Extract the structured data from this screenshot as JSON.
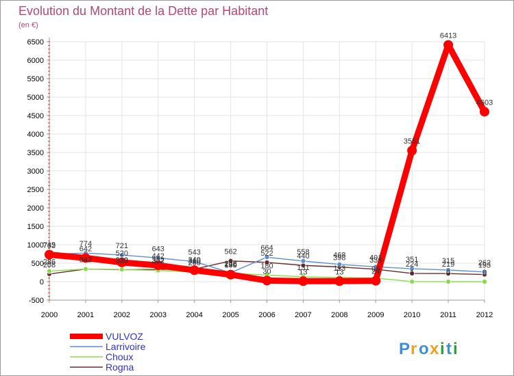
{
  "chart_data": {
    "type": "line",
    "title": "Evolution du Montant de la Dette par Habitant",
    "unit_label": "(en €)",
    "x": [
      "2000",
      "2001",
      "2002",
      "2003",
      "2004",
      "2005",
      "2006",
      "2007",
      "2008",
      "2009",
      "2010",
      "2011",
      "2012"
    ],
    "ylim": [
      -500,
      6500
    ],
    "yticks": [
      -500,
      0,
      500,
      1000,
      1500,
      2000,
      2500,
      3000,
      3500,
      4000,
      4500,
      5000,
      5500,
      6000,
      6500
    ],
    "series": [
      {
        "name": "VULVOZ",
        "color": "#ff0000",
        "values": [
          732,
          642,
          520,
          442,
          310,
          190,
          30,
          13,
          13,
          24,
          3551,
          6413,
          4603
        ]
      },
      {
        "name": "Larrivoire",
        "color": "#5b8fd4",
        "values": [
          745,
          774,
          721,
          643,
          543,
          242,
          664,
          558,
          468,
          401,
          351,
          315,
          262
        ]
      },
      {
        "name": "Choux",
        "color": "#88dd44",
        "values": [
          286,
          342,
          330,
          302,
          260,
          226,
          180,
          131,
          113,
          96,
          1,
          0,
          0
        ]
      },
      {
        "name": "Rogna",
        "color": "#6b2a2a",
        "values": [
          208,
          342,
          323,
          332,
          340,
          562,
          522,
          440,
          398,
          336,
          224,
          219,
          193
        ]
      }
    ]
  },
  "logo": {
    "letters": [
      "P",
      "r",
      "o",
      "x",
      "i",
      "t",
      "i"
    ],
    "colors": [
      "#3a8fd8",
      "#f0a020",
      "#3a8fd8",
      "#f0a020",
      "#2e9e3e",
      "#3a8fd8",
      "#2e9e3e"
    ]
  }
}
